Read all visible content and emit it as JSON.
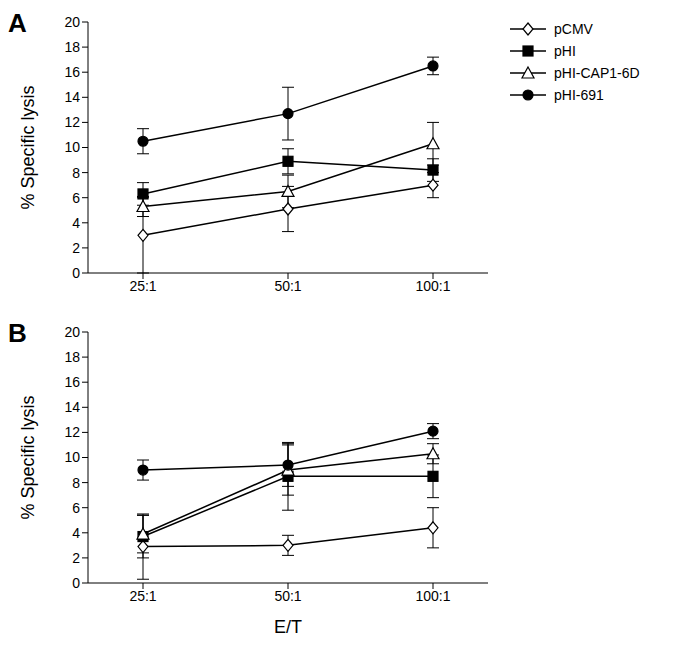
{
  "chart_data": [
    {
      "type": "line",
      "title": "A",
      "y_label": "% Specific lysis",
      "categories": [
        "25:1",
        "50:1",
        "100:1"
      ],
      "ylim": [
        0,
        20
      ],
      "yticks": [
        0,
        2,
        4,
        6,
        8,
        10,
        12,
        14,
        16,
        18,
        20
      ],
      "series": [
        {
          "name": "pCMV",
          "color": "#000000",
          "marker": "open diamond",
          "values": [
            3.0,
            5.1,
            7.0
          ],
          "errors": [
            3.0,
            1.8,
            1.0
          ]
        },
        {
          "name": "pHI",
          "color": "#000000",
          "marker": "square",
          "values": [
            6.3,
            8.9,
            8.2
          ],
          "errors": [
            0.9,
            1.0,
            0.9
          ]
        },
        {
          "name": "pHI-CAP1-6D",
          "color": "#000000",
          "marker": "open triangle",
          "values": [
            5.3,
            6.5,
            10.3
          ],
          "errors": [
            0.8,
            1.3,
            1.7
          ]
        },
        {
          "name": "pHI-691",
          "color": "#000000",
          "marker": "circle",
          "values": [
            10.5,
            12.7,
            16.5
          ],
          "errors": [
            1.0,
            2.1,
            0.7
          ]
        }
      ]
    },
    {
      "type": "line",
      "title": "B",
      "x_label": "E/T",
      "y_label": "% Specific lysis",
      "categories": [
        "25:1",
        "50:1",
        "100:1"
      ],
      "ylim": [
        0,
        20
      ],
      "yticks": [
        0,
        2,
        4,
        6,
        8,
        10,
        12,
        14,
        16,
        18,
        20
      ],
      "series": [
        {
          "name": "pCMV",
          "color": "#000000",
          "marker": "open diamond",
          "values": [
            2.9,
            3.0,
            4.4
          ],
          "errors": [
            2.6,
            0.8,
            1.6
          ]
        },
        {
          "name": "pHI",
          "color": "#000000",
          "marker": "square",
          "values": [
            3.7,
            8.5,
            8.5
          ],
          "errors": [
            1.7,
            2.7,
            1.7
          ]
        },
        {
          "name": "pHI-CAP1-6D",
          "color": "#000000",
          "marker": "open triangle",
          "values": [
            3.9,
            9.0,
            10.3
          ],
          "errors": [
            1.5,
            2.0,
            0.8
          ]
        },
        {
          "name": "pHI-691",
          "color": "#000000",
          "marker": "circle",
          "values": [
            9.0,
            9.4,
            12.1
          ],
          "errors": [
            0.8,
            1.7,
            0.6
          ]
        }
      ]
    }
  ]
}
